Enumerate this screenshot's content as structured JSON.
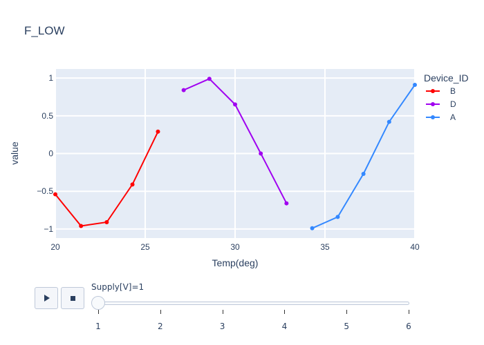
{
  "chart_data": {
    "type": "line",
    "title": "F_LOW",
    "xlabel": "Temp(deg)",
    "ylabel": "value",
    "xlim": [
      20,
      40
    ],
    "ylim": [
      -1.12,
      1.12
    ],
    "xticks": [
      20,
      25,
      30,
      35,
      40
    ],
    "xtick_labels": [
      "20",
      "25",
      "30",
      "35",
      "40"
    ],
    "yticks": [
      1,
      0.5,
      0,
      -0.5,
      -1
    ],
    "ytick_labels": [
      "1",
      "0.5",
      "0",
      "−0.5",
      "−1"
    ],
    "legend_title": "Device_ID",
    "legend_position": "right",
    "grid": true,
    "series": [
      {
        "name": "B",
        "color": "#ff0000",
        "x": [
          20.0,
          21.43,
          22.86,
          24.29,
          25.71
        ],
        "y": [
          -0.54,
          -0.96,
          -0.91,
          -0.41,
          0.29
        ]
      },
      {
        "name": "D",
        "color": "#a000f0",
        "x": [
          27.14,
          28.57,
          30.0,
          31.43,
          32.86
        ],
        "y": [
          0.84,
          0.99,
          0.65,
          0.0,
          -0.66
        ]
      },
      {
        "name": "A",
        "color": "#3388ff",
        "x": [
          34.29,
          35.71,
          37.14,
          38.57,
          40.0
        ],
        "y": [
          -0.99,
          -0.84,
          -0.27,
          0.42,
          0.91
        ]
      }
    ]
  },
  "slider": {
    "label": "Supply[V]=1",
    "value": 1,
    "steps": [
      "1",
      "2",
      "3",
      "4",
      "5",
      "6"
    ]
  },
  "controls": {
    "play_icon": "play-icon",
    "stop_icon": "stop-icon"
  }
}
